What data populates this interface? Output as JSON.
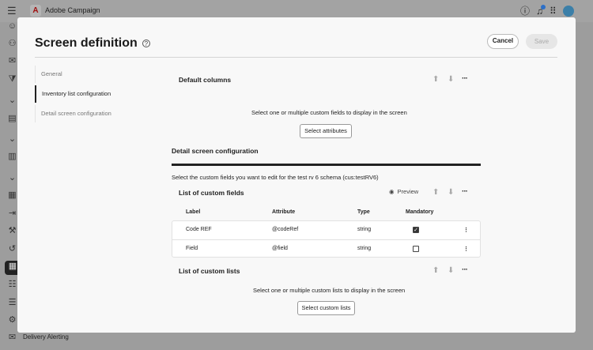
{
  "app": {
    "name": "Adobe Campaign",
    "logo": "A"
  },
  "sidebar": {
    "bottom_label": "Delivery Alerting"
  },
  "modal": {
    "title": "Screen definition",
    "cancel": "Cancel",
    "save": "Save",
    "nav": [
      {
        "label": "General"
      },
      {
        "label": "Inventory list configuration",
        "active": true
      },
      {
        "label": "Detail screen configuration"
      }
    ],
    "default_columns": {
      "title": "Default columns",
      "hint": "Select one or multiple custom fields to display in the screen",
      "button": "Select attributes"
    },
    "detail": {
      "title": "Detail screen configuration",
      "hint": "Select the custom fields you want to edit for the test rv 6 schema (cus:testRV6)",
      "fields": {
        "title": "List of custom fields",
        "preview": "Preview",
        "columns": [
          "Label",
          "Attribute",
          "Type",
          "Mandatory"
        ],
        "rows": [
          {
            "label": "Code REF",
            "attribute": "@codeRef",
            "type": "string",
            "mandatory": true
          },
          {
            "label": "Field",
            "attribute": "@field",
            "type": "string",
            "mandatory": false
          }
        ]
      },
      "lists": {
        "title": "List of custom lists",
        "hint": "Select one or multiple custom lists to display in the screen",
        "button": "Select custom lists"
      }
    }
  }
}
